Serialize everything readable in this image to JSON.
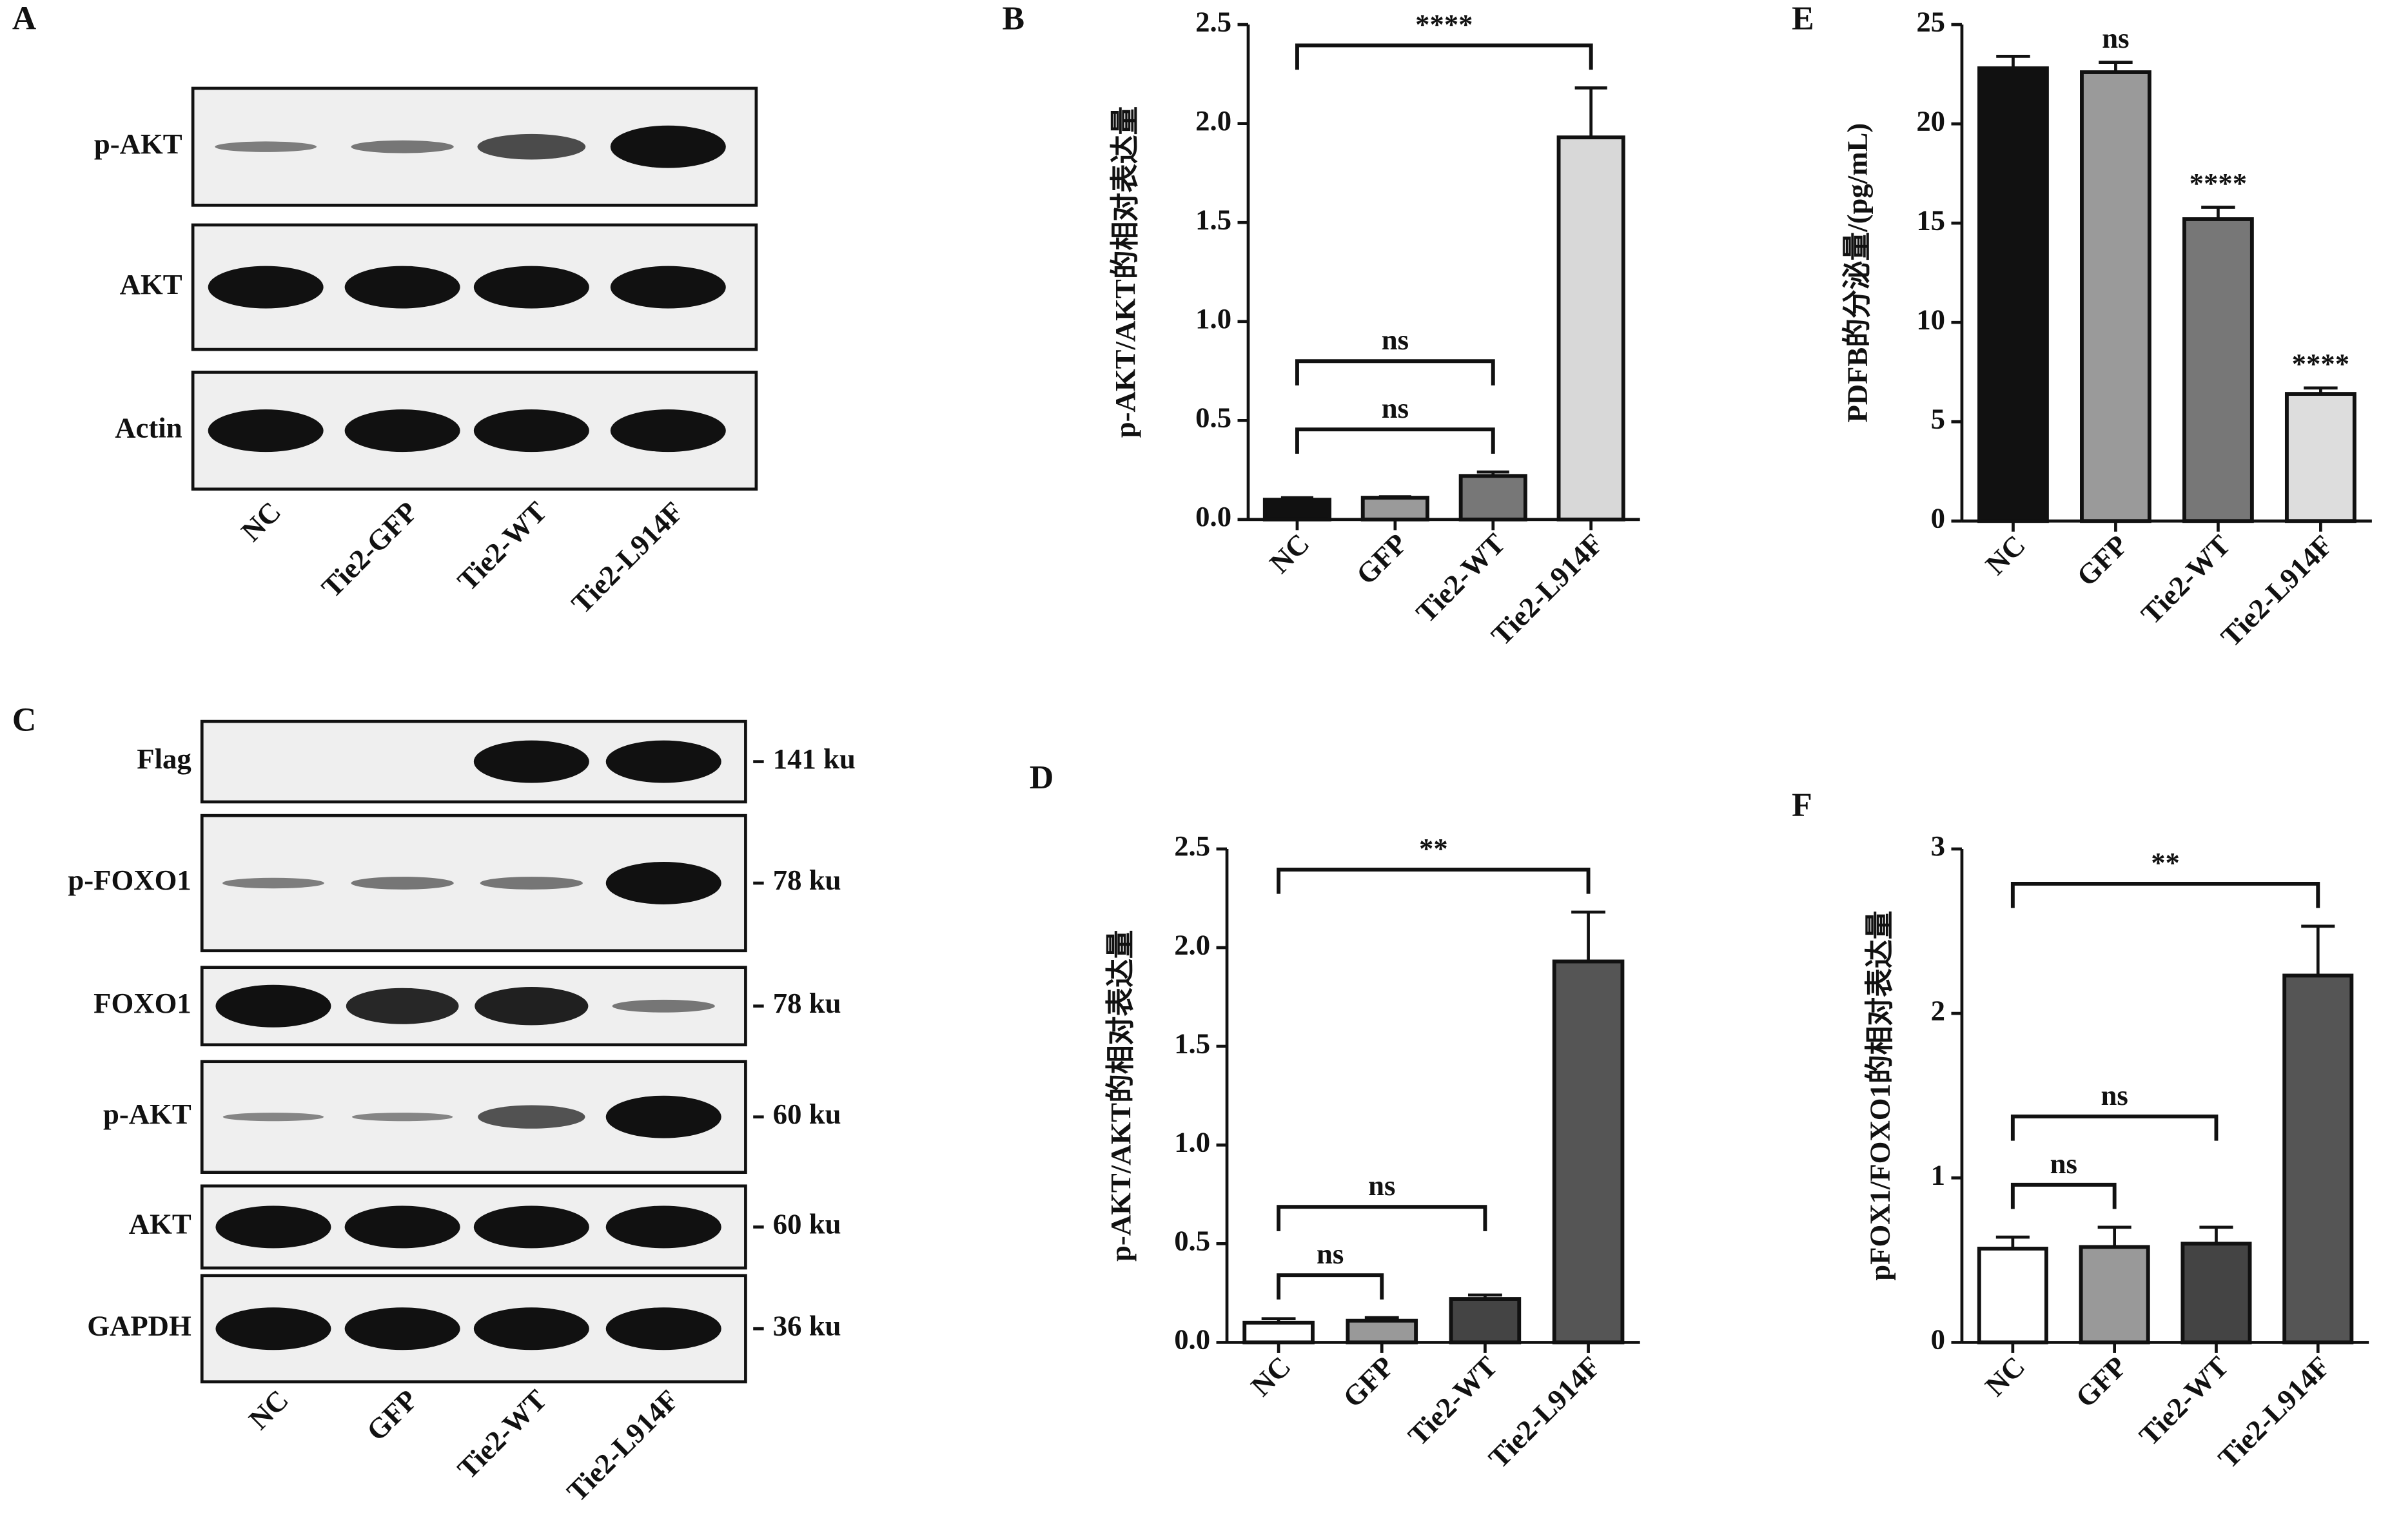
{
  "blots": [
    {
      "panel": "A",
      "rows": [
        {
          "label": "p-AKT"
        },
        {
          "label": "AKT"
        },
        {
          "label": "Actin"
        }
      ],
      "lanes": [
        "NC",
        "Tie2-GFP",
        "Tie2-WT",
        "Tie2-L914F"
      ]
    },
    {
      "panel": "C",
      "rows": [
        {
          "label": "Flag",
          "size": "141 ku"
        },
        {
          "label": "p-FOXO1",
          "size": "78 ku"
        },
        {
          "label": "FOXO1",
          "size": "78 ku"
        },
        {
          "label": "p-AKT",
          "size": "60 ku"
        },
        {
          "label": "AKT",
          "size": "60 ku"
        },
        {
          "label": "GAPDH",
          "size": "36 ku"
        }
      ],
      "lanes": [
        "NC",
        "GFP",
        "Tie2-WT",
        "Tie2-L914F"
      ]
    }
  ],
  "chart_data": [
    {
      "type": "bar",
      "panel": "B",
      "y_label": "p-AKT/AKT的相对表达量",
      "categories": [
        "NC",
        "GFP",
        "Tie2-WT",
        "Tie2-L914F"
      ],
      "values": [
        0.1,
        0.11,
        0.22,
        1.93
      ],
      "errors": [
        0.01,
        0.005,
        0.02,
        0.25
      ],
      "colors": [
        "#111111",
        "#9a9a9a",
        "#777777",
        "#d8d8d8"
      ],
      "ylim": [
        0,
        2.5
      ],
      "yticks": [
        {
          "value": 0,
          "label": "0.0"
        },
        {
          "value": 0.5,
          "label": "0.5"
        },
        {
          "value": 1,
          "label": "1.0"
        },
        {
          "value": 1.5,
          "label": "1.5"
        },
        {
          "value": 2,
          "label": "2.0"
        },
        {
          "value": 2.5,
          "label": "2.5"
        }
      ],
      "annotations": [
        {
          "text": "ns",
          "between": [
            "NC",
            "Tie2-WT"
          ]
        },
        {
          "text": "ns",
          "between": [
            "NC",
            "Tie2-WT"
          ]
        },
        {
          "text": "****",
          "between": [
            "NC",
            "Tie2-L914F"
          ]
        }
      ]
    },
    {
      "type": "bar",
      "panel": "E",
      "y_label": "PDFB的分泌量/(pg/mL)",
      "categories": [
        "NC",
        "GFP",
        "Tie2-WT",
        "Tie2-L914F"
      ],
      "values": [
        22.8,
        22.6,
        15.2,
        6.4
      ],
      "errors": [
        0.6,
        0.5,
        0.6,
        0.3
      ],
      "colors": [
        "#111111",
        "#9a9a9a",
        "#777777",
        "#dddddd"
      ],
      "ylim": [
        0,
        25
      ],
      "yticks": [
        0,
        5,
        10,
        15,
        20,
        25
      ],
      "annotations": [
        {
          "text": "ns",
          "category": "GFP"
        },
        {
          "text": "****",
          "category": "Tie2-WT"
        },
        {
          "text": "****",
          "category": "Tie2-L914F"
        }
      ]
    },
    {
      "type": "bar",
      "panel": "D",
      "y_label": "p-AKT/AKT的相对表达量",
      "categories": [
        "NC",
        "GFP",
        "Tie2-WT",
        "Tie2-L914F"
      ],
      "values": [
        0.1,
        0.11,
        0.22,
        1.93
      ],
      "errors": [
        0.02,
        0.015,
        0.02,
        0.25
      ],
      "colors": [
        "#ffffff",
        "#999999",
        "#444444",
        "#555555"
      ],
      "ylim": [
        0,
        2.5
      ],
      "yticks": [
        {
          "value": 0,
          "label": "0.0"
        },
        {
          "value": 0.5,
          "label": "0.5"
        },
        {
          "value": 1,
          "label": "1.0"
        },
        {
          "value": 1.5,
          "label": "1.5"
        },
        {
          "value": 2,
          "label": "2.0"
        },
        {
          "value": 2.5,
          "label": "2.5"
        }
      ],
      "annotations": [
        {
          "text": "ns",
          "between": [
            "NC",
            "GFP"
          ]
        },
        {
          "text": "ns",
          "between": [
            "NC",
            "Tie2-WT"
          ]
        },
        {
          "text": "**",
          "between": [
            "NC",
            "Tie2-L914F"
          ]
        }
      ]
    },
    {
      "type": "bar",
      "panel": "F",
      "y_label": "pFOX1/FOXO1的相对表达量",
      "categories": [
        "NC",
        "GFP",
        "Tie2-WT",
        "Tie2-L914F"
      ],
      "values": [
        0.57,
        0.58,
        0.6,
        2.23
      ],
      "errors": [
        0.07,
        0.12,
        0.1,
        0.3
      ],
      "colors": [
        "#ffffff",
        "#999999",
        "#444444",
        "#555555"
      ],
      "ylim": [
        0,
        3
      ],
      "yticks": [
        0,
        1,
        2,
        3
      ],
      "annotations": [
        {
          "text": "ns",
          "between": [
            "NC",
            "GFP"
          ]
        },
        {
          "text": "ns",
          "between": [
            "NC",
            "Tie2-WT"
          ]
        },
        {
          "text": "**",
          "between": [
            "NC",
            "Tie2-L914F"
          ]
        }
      ]
    }
  ]
}
